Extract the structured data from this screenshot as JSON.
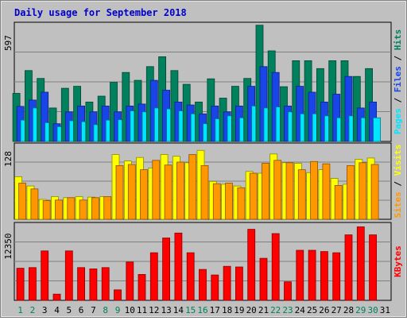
{
  "chart_data": {
    "type": "bar",
    "title": "Daily usage for September 2018",
    "x": [
      "1",
      "2",
      "3",
      "4",
      "5",
      "6",
      "7",
      "8",
      "9",
      "10",
      "11",
      "12",
      "13",
      "14",
      "15",
      "16",
      "17",
      "18",
      "19",
      "20",
      "21",
      "22",
      "23",
      "24",
      "25",
      "26",
      "27",
      "28",
      "29",
      "30",
      "31"
    ],
    "weekend_days": [
      "1",
      "2",
      "8",
      "9",
      "15",
      "16",
      "22",
      "23",
      "29",
      "30"
    ],
    "panels": [
      {
        "name": "hits_files_pages",
        "max_label": "597",
        "ymax": 597,
        "series": [
          {
            "name": "Hits",
            "color": "#00805c",
            "values": [
              244,
              360,
              320,
              170,
              270,
              280,
              200,
              230,
              300,
              350,
              310,
              380,
              430,
              360,
              290,
              200,
              318,
              220,
              280,
              320,
              590,
              460,
              278,
              410,
              410,
              370,
              410,
              410,
              330,
              370,
              0
            ]
          },
          {
            "name": "Files",
            "color": "#1844e8",
            "values": [
              178,
              210,
              250,
              90,
              150,
              180,
              150,
              180,
              150,
              180,
              190,
              310,
              260,
              200,
              185,
              140,
              180,
              150,
              180,
              280,
              380,
              350,
              180,
              280,
              250,
              200,
              240,
              330,
              170,
              200,
              0
            ]
          },
          {
            "name": "Pages",
            "color": "#00e6ff",
            "values": [
              108,
              170,
              95,
              75,
              105,
              100,
              85,
              108,
              110,
              155,
              150,
              170,
              165,
              155,
              140,
              90,
              115,
              130,
              120,
              180,
              170,
              175,
              150,
              140,
              140,
              130,
              120,
              130,
              120,
              120,
              0
            ]
          }
        ],
        "axis_label_parts": [
          "Pages",
          " / ",
          "Files",
          " / ",
          "Hits"
        ],
        "axis_label_colors": [
          "#00e6ff",
          "#000000",
          "#1844e8",
          "#000000",
          "#00805c"
        ]
      },
      {
        "name": "visits_sites",
        "max_label": "128",
        "ymax": 128,
        "series": [
          {
            "name": "Visits",
            "color": "#ffff00",
            "values": [
              73,
              57,
              34,
              39,
              37,
              39,
              38,
              39,
              111,
              100,
              106,
              88,
              111,
              108,
              97,
              118,
              65,
              60,
              57,
              82,
              79,
              112,
              97,
              96,
              80,
              85,
              70,
              60,
              103,
              105,
              0
            ]
          },
          {
            "name": "Sites",
            "color": "#ff9800",
            "values": [
              62,
              52,
              32,
              33,
              37,
              33,
              37,
              39,
              92,
              94,
              85,
              101,
              93,
              98,
              111,
              92,
              61,
              62,
              54,
              79,
              96,
              101,
              97,
              85,
              99,
              95,
              58,
              92,
              97,
              94,
              0
            ]
          }
        ],
        "axis_label_parts": [
          "Sites",
          " / ",
          "Visits"
        ],
        "axis_label_colors": [
          "#ff9800",
          "#000000",
          "#ffff00"
        ]
      },
      {
        "name": "kbytes",
        "max_label": "12350",
        "ymax": 12350,
        "series": [
          {
            "name": "KBytes",
            "color": "#ff0000",
            "values": [
              5200,
              5300,
              8000,
              1000,
              8000,
              5300,
              5100,
              5300,
              1700,
              6200,
              4200,
              7700,
              10100,
              10900,
              7700,
              5000,
              4100,
              5500,
              5400,
              11500,
              6800,
              10800,
              3000,
              8100,
              8100,
              7900,
              7700,
              10600,
              11900,
              10600,
              0
            ]
          }
        ],
        "axis_label_parts": [
          "KBytes"
        ],
        "axis_label_colors": [
          "#ff0000"
        ]
      }
    ]
  }
}
